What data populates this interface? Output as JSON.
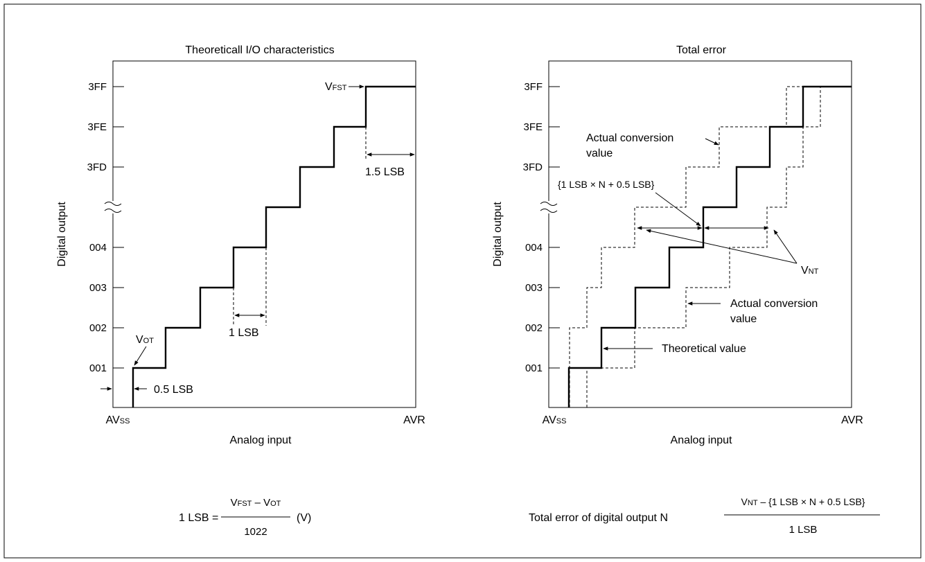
{
  "left": {
    "title": "Theoreticall I/O characteristics",
    "y_label": "Digital output",
    "x_label": "Analog input",
    "x_start": "AV",
    "x_start_sub": "SS",
    "x_end": "AVR",
    "y_ticks": [
      "001",
      "002",
      "003",
      "004",
      "3FD",
      "3FE",
      "3FF"
    ],
    "annotations": {
      "vot_main": "V",
      "vot_sub": "OT",
      "vfst_main": "V",
      "vfst_sub": "FST",
      "half_lsb": "0.5 LSB",
      "one_lsb": "1 LSB",
      "one_half_lsb": "1.5 LSB"
    },
    "formula": {
      "lhs": "1 LSB =",
      "num_a": "V",
      "num_a_sub": "FST",
      "num_minus": " – ",
      "num_b": "V",
      "num_b_sub": "OT",
      "denominator": "1022",
      "unit": "(V)"
    }
  },
  "right": {
    "title": "Total error",
    "y_label": "Digital output",
    "x_label": "Analog input",
    "x_start": "AV",
    "x_start_sub": "SS",
    "x_end": "AVR",
    "y_ticks": [
      "001",
      "002",
      "003",
      "004",
      "3FD",
      "3FE",
      "3FF"
    ],
    "annotations": {
      "actual_upper_1": "Actual conversion",
      "actual_upper_2": "value",
      "actual_lower_1": "Actual conversion",
      "actual_lower_2": "value",
      "theoretical": "Theoretical value",
      "bracket": "{1 LSB × N + 0.5 LSB}",
      "vnt_main": "V",
      "vnt_sub": "NT"
    },
    "formula": {
      "lhs": "Total error of digital output N",
      "num_main": "V",
      "num_sub": "NT",
      "num_rest": " – {1 LSB × N + 0.5 LSB}",
      "denominator": "1 LSB"
    }
  }
}
